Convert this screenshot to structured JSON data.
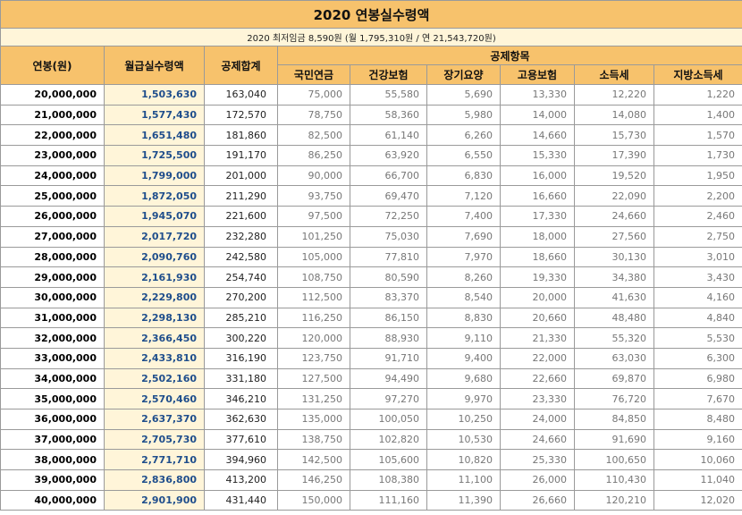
{
  "title": "2020 연봉실수령액",
  "subtitle": "2020 최저임금 8,590원 (월 1,795,310원 / 연 21,543,720원)",
  "headers": {
    "salary": "연봉(원)",
    "net_monthly": "월급실수령액",
    "total_deduction": "공제합계",
    "deduction_items": "공제항목",
    "items": [
      "국민연금",
      "건강보험",
      "장기요양",
      "고용보험",
      "소득세",
      "지방소득세"
    ]
  },
  "rows": [
    [
      "20,000,000",
      "1,503,630",
      "163,040",
      "75,000",
      "55,580",
      "5,690",
      "13,330",
      "12,220",
      "1,220"
    ],
    [
      "21,000,000",
      "1,577,430",
      "172,570",
      "78,750",
      "58,360",
      "5,980",
      "14,000",
      "14,080",
      "1,400"
    ],
    [
      "22,000,000",
      "1,651,480",
      "181,860",
      "82,500",
      "61,140",
      "6,260",
      "14,660",
      "15,730",
      "1,570"
    ],
    [
      "23,000,000",
      "1,725,500",
      "191,170",
      "86,250",
      "63,920",
      "6,550",
      "15,330",
      "17,390",
      "1,730"
    ],
    [
      "24,000,000",
      "1,799,000",
      "201,000",
      "90,000",
      "66,700",
      "6,830",
      "16,000",
      "19,520",
      "1,950"
    ],
    [
      "25,000,000",
      "1,872,050",
      "211,290",
      "93,750",
      "69,470",
      "7,120",
      "16,660",
      "22,090",
      "2,200"
    ],
    [
      "26,000,000",
      "1,945,070",
      "221,600",
      "97,500",
      "72,250",
      "7,400",
      "17,330",
      "24,660",
      "2,460"
    ],
    [
      "27,000,000",
      "2,017,720",
      "232,280",
      "101,250",
      "75,030",
      "7,690",
      "18,000",
      "27,560",
      "2,750"
    ],
    [
      "28,000,000",
      "2,090,760",
      "242,580",
      "105,000",
      "77,810",
      "7,970",
      "18,660",
      "30,130",
      "3,010"
    ],
    [
      "29,000,000",
      "2,161,930",
      "254,740",
      "108,750",
      "80,590",
      "8,260",
      "19,330",
      "34,380",
      "3,430"
    ],
    [
      "30,000,000",
      "2,229,800",
      "270,200",
      "112,500",
      "83,370",
      "8,540",
      "20,000",
      "41,630",
      "4,160"
    ],
    [
      "31,000,000",
      "2,298,130",
      "285,210",
      "116,250",
      "86,150",
      "8,830",
      "20,660",
      "48,480",
      "4,840"
    ],
    [
      "32,000,000",
      "2,366,450",
      "300,220",
      "120,000",
      "88,930",
      "9,110",
      "21,330",
      "55,320",
      "5,530"
    ],
    [
      "33,000,000",
      "2,433,810",
      "316,190",
      "123,750",
      "91,710",
      "9,400",
      "22,000",
      "63,030",
      "6,300"
    ],
    [
      "34,000,000",
      "2,502,160",
      "331,180",
      "127,500",
      "94,490",
      "9,680",
      "22,660",
      "69,870",
      "6,980"
    ],
    [
      "35,000,000",
      "2,570,460",
      "346,210",
      "131,250",
      "97,270",
      "9,970",
      "23,330",
      "76,720",
      "7,670"
    ],
    [
      "36,000,000",
      "2,637,370",
      "362,630",
      "135,000",
      "100,050",
      "10,250",
      "24,000",
      "84,850",
      "8,480"
    ],
    [
      "37,000,000",
      "2,705,730",
      "377,610",
      "138,750",
      "102,820",
      "10,530",
      "24,660",
      "91,690",
      "9,160"
    ],
    [
      "38,000,000",
      "2,771,710",
      "394,960",
      "142,500",
      "105,600",
      "10,820",
      "25,330",
      "100,650",
      "10,060"
    ],
    [
      "39,000,000",
      "2,836,800",
      "413,200",
      "146,250",
      "108,380",
      "11,100",
      "26,000",
      "110,430",
      "11,040"
    ],
    [
      "40,000,000",
      "2,901,900",
      "431,440",
      "150,000",
      "111,160",
      "11,390",
      "26,660",
      "120,210",
      "12,020"
    ]
  ]
}
